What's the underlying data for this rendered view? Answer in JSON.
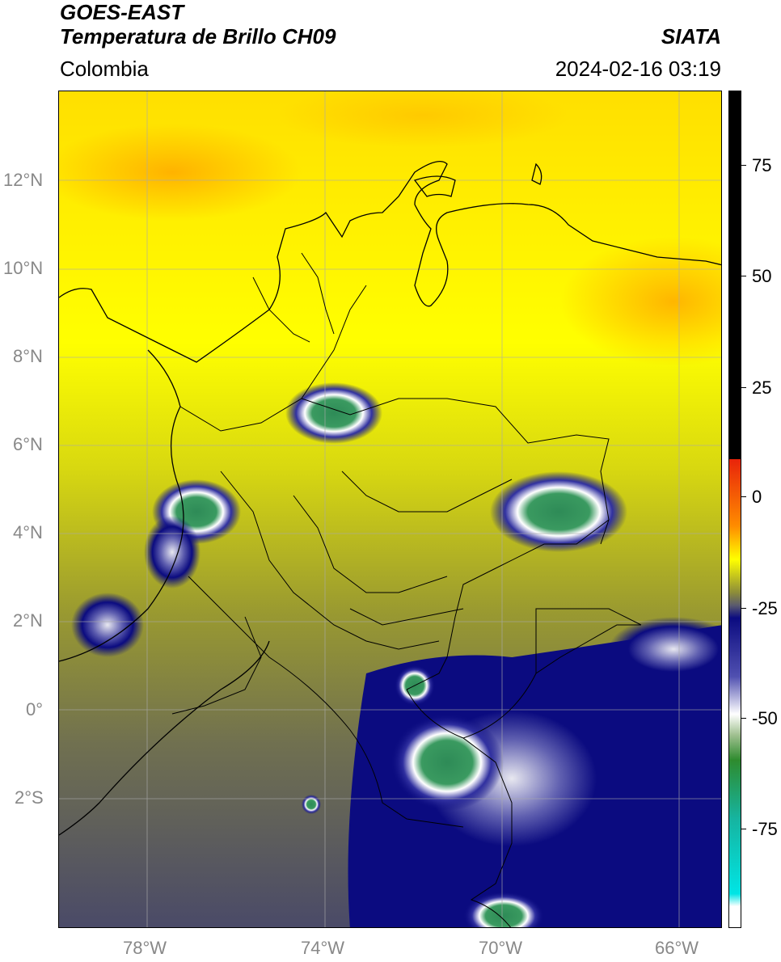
{
  "header": {
    "satellite": "GOES-EAST",
    "product": "Temperatura de Brillo CH09",
    "region": "Colombia",
    "organization": "SIATA",
    "datetime": "2024-02-16 03:19"
  },
  "map": {
    "lon_range": [
      -80,
      -65
    ],
    "lat_range": [
      -5,
      14
    ],
    "lon_ticks": [
      "78°W",
      "74°W",
      "70°W",
      "66°W"
    ],
    "lat_ticks": [
      "12°N",
      "10°N",
      "8°N",
      "6°N",
      "4°N",
      "2°N",
      "0°",
      "2°S"
    ],
    "gridlines": true
  },
  "colorbar": {
    "ticks": [
      "75",
      "50",
      "25",
      "0",
      "-25",
      "-50",
      "-75"
    ],
    "range": [
      -95,
      90
    ],
    "colors": {
      "black": "#000000",
      "red": "#e8240a",
      "orange": "#ff8c00",
      "yellow": "#ffff00",
      "olive": "#8b8b3a",
      "gray": "#5a5a6e",
      "navy": "#0b0b80",
      "white": "#ffffff",
      "green": "#2e8b2e",
      "teal": "#16b4a0",
      "cyan": "#00e5e5"
    }
  }
}
